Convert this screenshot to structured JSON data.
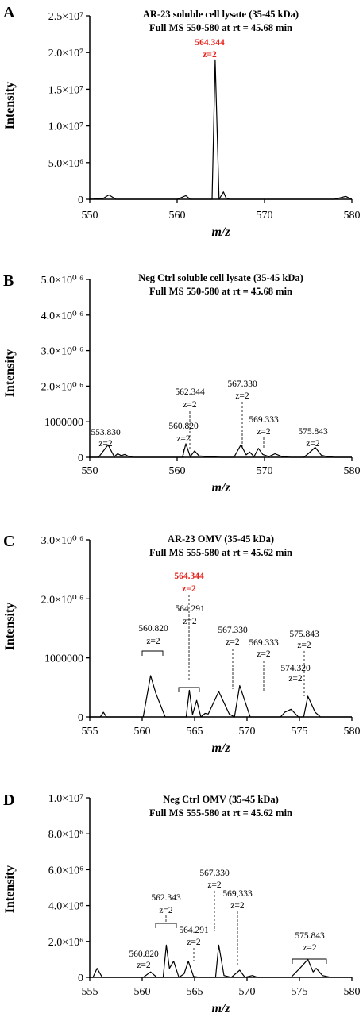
{
  "chart_data": [
    {
      "type": "line",
      "panel": "A",
      "title": "AR-23 soluble cell lysate (35-45 kDa)",
      "subtitle": "Full MS 550-580 at rt = 45.68 min",
      "xlabel": "m/z",
      "ylabel": "Intensity",
      "xlim": [
        550,
        580
      ],
      "ylim": [
        0,
        25000000
      ],
      "x_ticks": [
        "550",
        "560",
        "570",
        "580"
      ],
      "y_ticks": [
        "0",
        "5.0×10⁶",
        "1.0×10⁷",
        "1.5×10⁷",
        "2.0×10⁷",
        "2.5×10⁷"
      ],
      "y_tick_values": [
        0,
        5000000,
        10000000,
        15000000,
        20000000,
        25000000
      ],
      "series": [
        {
          "x": [
            550,
            551.5,
            552.2,
            553,
            554,
            556,
            558,
            560,
            561.0,
            561.5,
            562,
            563,
            564.0,
            564.35,
            564.8,
            565.3,
            565.6,
            566,
            566.5,
            568,
            570,
            572,
            574,
            576,
            578,
            579.3,
            580
          ],
          "y": [
            0,
            100000,
            600000,
            0,
            0,
            0,
            0,
            0,
            500000,
            0,
            0,
            0,
            0,
            19000000,
            0,
            1000000,
            200000,
            0,
            0,
            0,
            0,
            0,
            0,
            0,
            0,
            400000,
            0
          ]
        }
      ],
      "annotations": [
        {
          "x": 564.344,
          "y": 19000000,
          "label": "564.344",
          "charge": "z=2",
          "color": "#e8201a"
        }
      ]
    },
    {
      "type": "line",
      "panel": "B",
      "title": "Neg Ctrl soluble cell lysate (35-45 kDa)",
      "subtitle": "Full MS 550-580 at rt = 45.68 min",
      "xlabel": "m/z",
      "ylabel": "Intensity",
      "xlim": [
        550,
        580
      ],
      "ylim": [
        0,
        5000000
      ],
      "x_ticks": [
        "550",
        "560",
        "570",
        "580"
      ],
      "y_ticks": [
        "0",
        "1000000",
        "2.0×10⁰ ⁶",
        "3.0×10⁰ ⁶",
        "4.0×10⁰ ⁶",
        "5.0×10⁰ ⁶"
      ],
      "y_tick_values": [
        0,
        1000000,
        2000000,
        3000000,
        4000000,
        5000000
      ],
      "series": [
        {
          "x": [
            550,
            551.0,
            552.1,
            552.8,
            553.2,
            553.6,
            554,
            554.5,
            555,
            556,
            558,
            559.5,
            560.6,
            561.0,
            561.5,
            562.0,
            562.5,
            563.5,
            565,
            566.5,
            567.3,
            567.9,
            568.3,
            568.8,
            569.3,
            569.8,
            570.5,
            571.2,
            572,
            573,
            574.5,
            575.0,
            575.8,
            576.5,
            577,
            578,
            579,
            580
          ],
          "y": [
            0,
            0,
            350000,
            20000,
            100000,
            50000,
            80000,
            20000,
            0,
            0,
            0,
            0,
            0,
            380000,
            20000,
            180000,
            40000,
            20000,
            0,
            0,
            350000,
            70000,
            150000,
            20000,
            250000,
            80000,
            20000,
            100000,
            20000,
            0,
            0,
            100000,
            280000,
            60000,
            30000,
            0,
            0,
            0
          ]
        }
      ],
      "annotations": [
        {
          "x": 553.83,
          "label": "553.830",
          "charge": "z=2"
        },
        {
          "x": 560.82,
          "label": "560.820",
          "charge": "z=2"
        },
        {
          "x": 562.344,
          "label": "562.344",
          "charge": "z=2"
        },
        {
          "x": 567.33,
          "label": "567.330",
          "charge": "z=2"
        },
        {
          "x": 569.333,
          "label": "569.333",
          "charge": "z=2"
        },
        {
          "x": 575.843,
          "label": "575.843",
          "charge": "z=2"
        }
      ]
    },
    {
      "type": "line",
      "panel": "C",
      "title": "AR-23 OMV (35-45 kDa)",
      "subtitle": "Full MS 555-580 at rt = 45.62 min",
      "xlabel": "m/z",
      "ylabel": "Intensity",
      "xlim": [
        555,
        580
      ],
      "ylim": [
        0,
        3000000
      ],
      "x_ticks": [
        "555",
        "560",
        "565",
        "570",
        "575",
        "580"
      ],
      "y_ticks": [
        "0",
        "1000000",
        "2.0×10⁰ ⁶",
        "3.0×10⁰ ⁶"
      ],
      "y_tick_values": [
        0,
        1000000,
        2000000,
        3000000
      ],
      "series": [
        {
          "x": [
            555,
            556.0,
            556.3,
            556.6,
            557,
            558,
            559,
            560.1,
            560.8,
            561.3,
            562.2,
            563,
            564.2,
            564.5,
            564.8,
            565.2,
            565.6,
            566,
            566.3,
            567.3,
            568.3,
            568.8,
            569.3,
            570.3,
            571,
            572,
            573.2,
            573.6,
            574.2,
            574.9,
            575.4,
            575.8,
            576.5,
            577.0,
            578,
            579,
            580
          ],
          "y": [
            0,
            0,
            80000,
            0,
            0,
            0,
            0,
            0,
            700000,
            400000,
            0,
            0,
            0,
            450000,
            40000,
            280000,
            0,
            60000,
            50000,
            430000,
            50000,
            0,
            530000,
            0,
            0,
            0,
            0,
            80000,
            130000,
            0,
            0,
            350000,
            80000,
            0,
            0,
            0,
            0
          ]
        }
      ],
      "annotations": [
        {
          "x": 560.82,
          "label": "560.820",
          "charge": "z=2"
        },
        {
          "x": 564.291,
          "label": "564.291",
          "charge": "z=2"
        },
        {
          "x": 564.344,
          "label": "564.344",
          "charge": "z=2",
          "color": "#e8201a"
        },
        {
          "x": 567.33,
          "label": "567.330",
          "charge": "z=2"
        },
        {
          "x": 569.333,
          "label": "569.333",
          "charge": "z=2"
        },
        {
          "x": 574.32,
          "label": "574.320",
          "charge": "z=2"
        },
        {
          "x": 575.843,
          "label": "575.843",
          "charge": "z=2"
        }
      ]
    },
    {
      "type": "line",
      "panel": "D",
      "title": "Neg Ctrl OMV (35-45 kDa)",
      "subtitle": "Full MS 555-580 at rt = 45.62 min",
      "xlabel": "m/z",
      "ylabel": "Intensity",
      "xlim": [
        555,
        580
      ],
      "ylim": [
        0,
        10000000
      ],
      "x_ticks": [
        "555",
        "560",
        "565",
        "570",
        "575",
        "580"
      ],
      "y_ticks": [
        "0",
        "2.0×10⁶",
        "4.0×10⁶",
        "6.0×10⁶",
        "8.0×10⁶",
        "1.0×10⁷"
      ],
      "y_tick_values": [
        0,
        2000000,
        4000000,
        6000000,
        8000000,
        10000000
      ],
      "series": [
        {
          "x": [
            555,
            555.3,
            555.7,
            556.2,
            557,
            558,
            559,
            560.1,
            560.8,
            561.4,
            562.0,
            562.3,
            562.6,
            563.0,
            563.5,
            564.0,
            564.4,
            564.9,
            565.5,
            566.3,
            567.0,
            567.3,
            567.8,
            568.5,
            569.3,
            569.8,
            570.5,
            571.0,
            572,
            573,
            574.2,
            575.2,
            575.8,
            576.3,
            576.6,
            577.2,
            578,
            579,
            580
          ],
          "y": [
            0,
            0,
            500000,
            0,
            0,
            0,
            0,
            0,
            300000,
            0,
            0,
            1800000,
            500000,
            900000,
            0,
            200000,
            900000,
            50000,
            0,
            0,
            0,
            1800000,
            100000,
            0,
            400000,
            0,
            100000,
            0,
            0,
            0,
            0,
            600000,
            1000000,
            300000,
            500000,
            100000,
            0,
            0,
            0
          ]
        }
      ],
      "annotations": [
        {
          "x": 560.82,
          "label": "560.820",
          "charge": "z=2"
        },
        {
          "x": 562.343,
          "label": "562.343",
          "charge": "z=2"
        },
        {
          "x": 564.291,
          "label": "564.291",
          "charge": "z=2"
        },
        {
          "x": 567.33,
          "label": "567.330",
          "charge": "z=2"
        },
        {
          "x": 569.333,
          "label": "569,333",
          "charge": "z=2"
        },
        {
          "x": 575.843,
          "label": "575.843",
          "charge": "z=2"
        }
      ]
    }
  ]
}
